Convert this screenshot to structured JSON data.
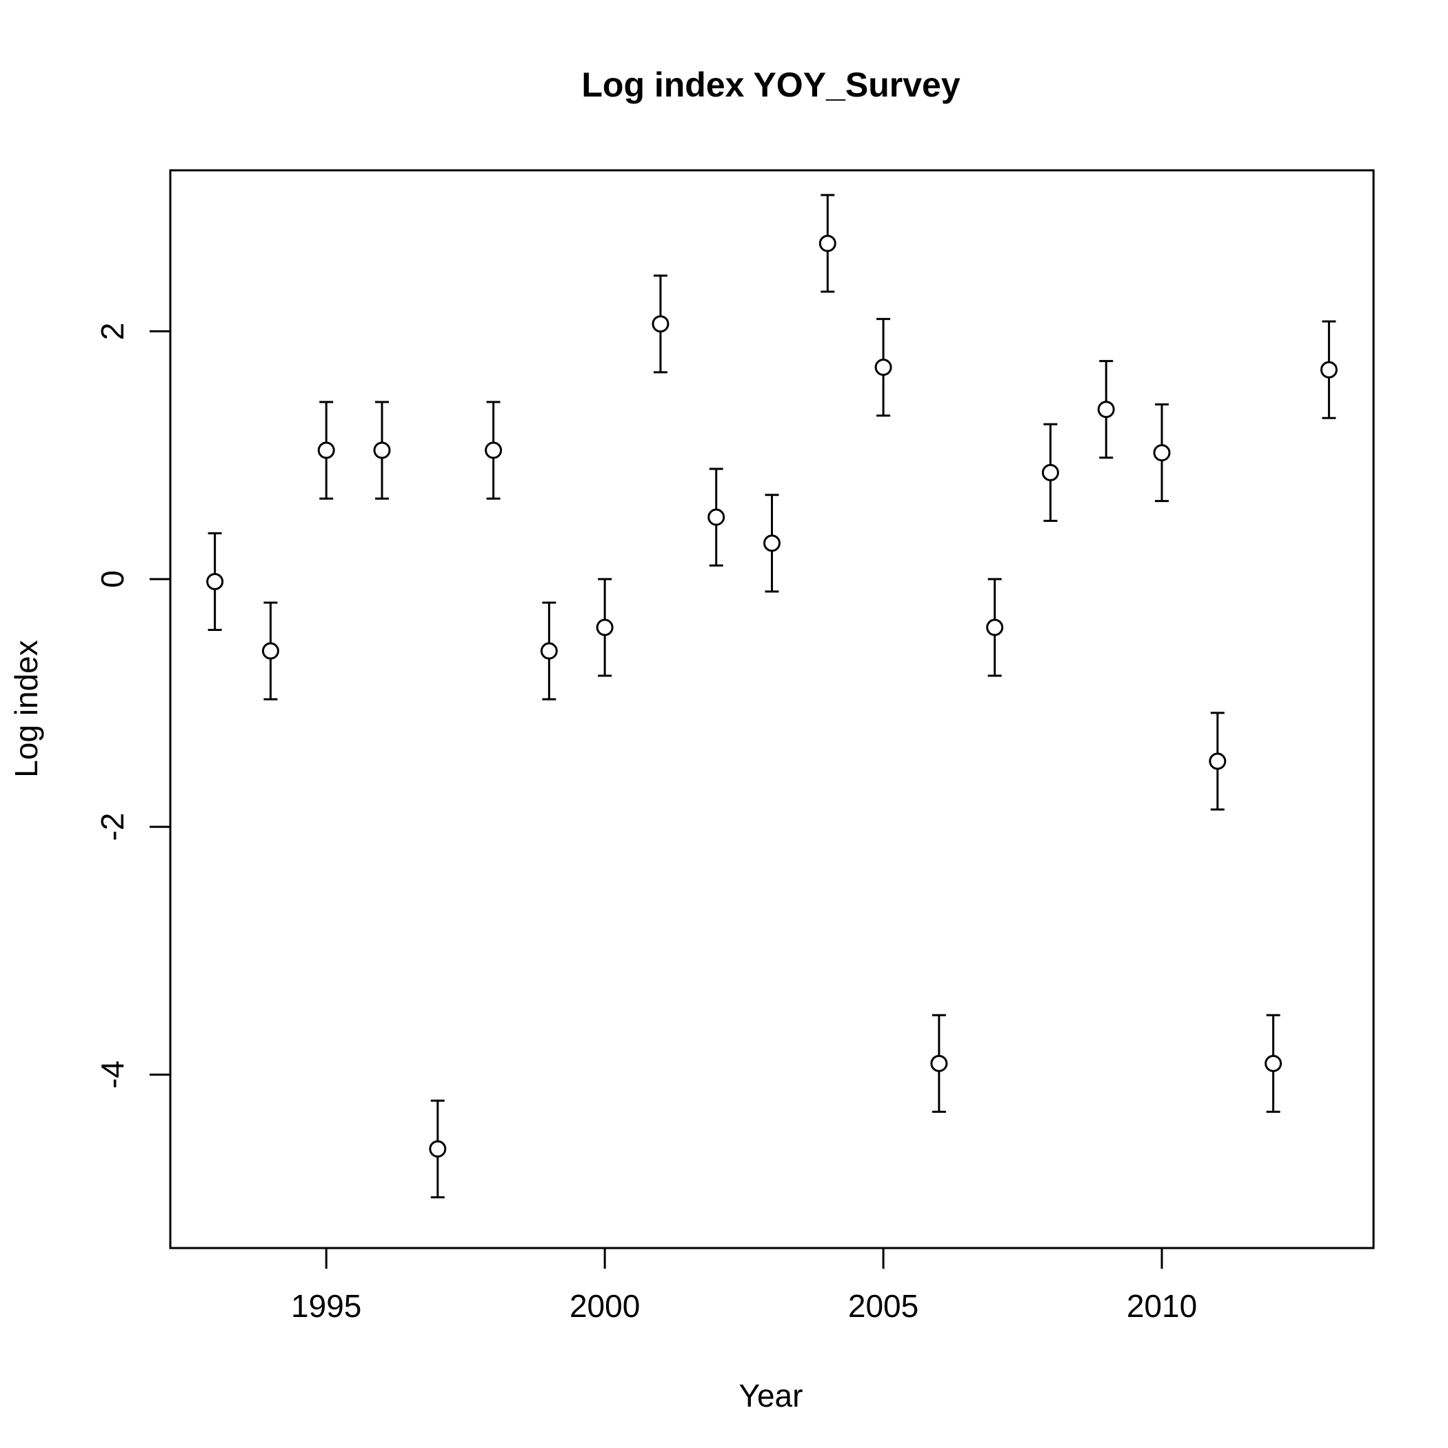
{
  "chart_data": {
    "type": "scatter",
    "title": "Log index YOY_Survey",
    "xlabel": "Year",
    "ylabel": "Log index",
    "xlim": [
      1992.2,
      2013.8
    ],
    "ylim": [
      -5.4,
      3.3
    ],
    "xticks": [
      1995,
      2000,
      2005,
      2010
    ],
    "yticks": [
      -4,
      -2,
      0,
      2
    ],
    "grid": false,
    "legend": "none",
    "error_bars": true,
    "series": [
      {
        "x": [
          1993,
          1994,
          1995,
          1996,
          1997,
          1998,
          1999,
          2000,
          2001,
          2002,
          2003,
          2004,
          2005,
          2006,
          2007,
          2008,
          2009,
          2010,
          2011,
          2012,
          2013
        ],
        "y": [
          -0.02,
          -0.58,
          1.04,
          1.04,
          -4.6,
          1.04,
          -0.58,
          -0.39,
          2.06,
          0.5,
          0.29,
          2.71,
          1.71,
          -3.91,
          -0.39,
          0.86,
          1.37,
          1.02,
          -1.47,
          -3.91,
          1.69
        ],
        "lower": [
          -0.41,
          -0.97,
          0.65,
          0.65,
          -4.99,
          0.65,
          -0.97,
          -0.78,
          1.67,
          0.11,
          -0.1,
          2.32,
          1.32,
          -4.3,
          -0.78,
          0.47,
          0.98,
          0.63,
          -1.86,
          -4.3,
          1.3
        ],
        "upper": [
          0.37,
          -0.19,
          1.43,
          1.43,
          -4.21,
          1.43,
          -0.19,
          0.0,
          2.45,
          0.89,
          0.68,
          3.1,
          2.1,
          -3.52,
          0.0,
          1.25,
          1.76,
          1.41,
          -1.08,
          -3.52,
          2.08
        ]
      }
    ]
  }
}
